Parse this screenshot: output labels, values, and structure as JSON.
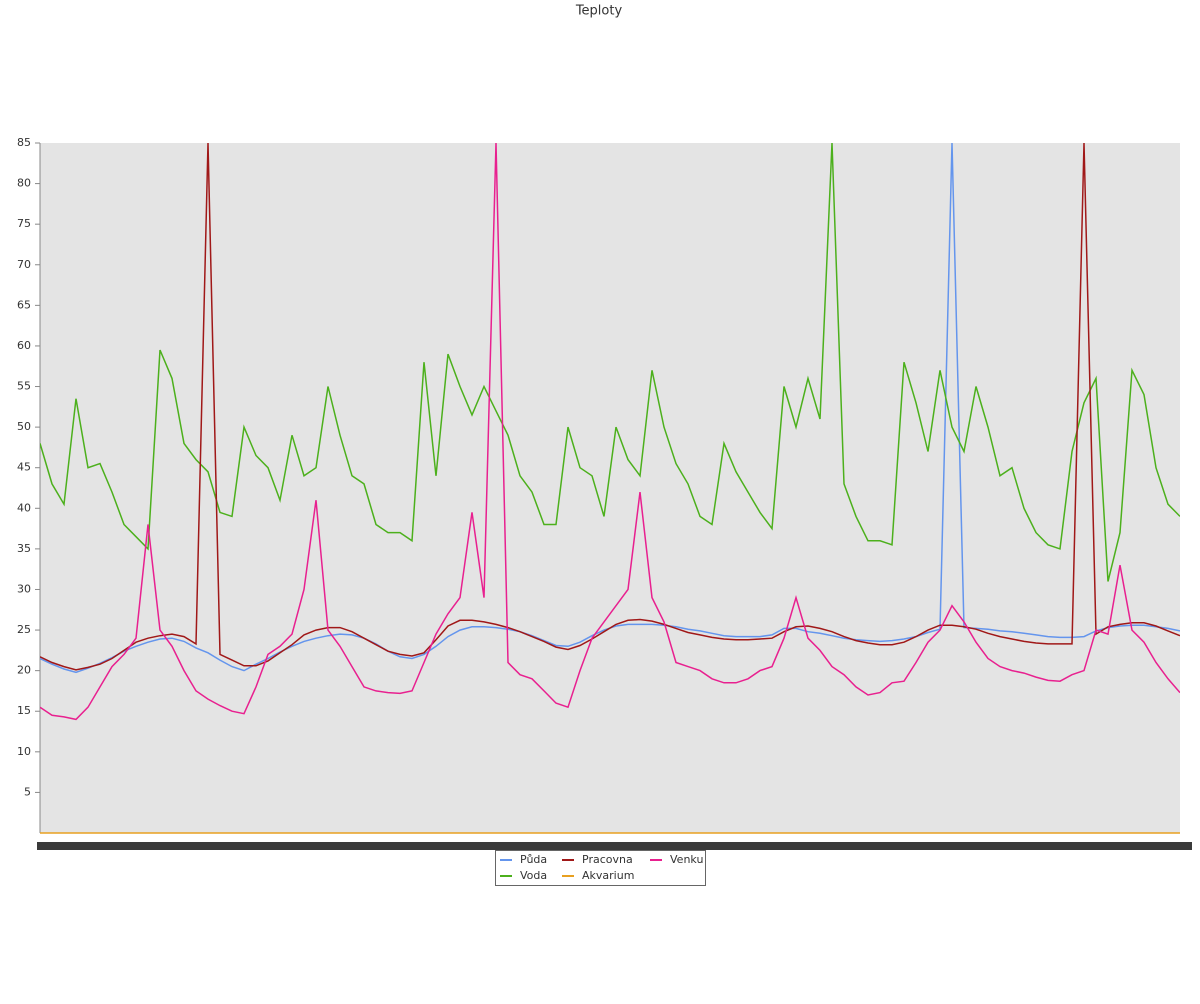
{
  "chart_data": {
    "type": "line",
    "title": "Teploty",
    "categories": [
      null,
      null,
      null,
      null,
      null,
      null,
      null,
      null,
      null,
      null,
      null,
      null,
      null,
      null,
      null,
      null,
      null,
      null,
      null,
      null,
      null,
      null,
      null,
      null,
      null,
      null,
      null,
      null,
      null,
      null,
      null,
      null,
      null,
      null,
      null,
      null,
      null,
      null,
      null,
      null,
      null,
      null,
      null,
      null,
      null,
      null,
      null,
      null,
      null,
      null,
      null,
      null,
      null,
      null,
      null,
      null,
      null,
      null,
      null,
      null,
      null,
      null,
      null,
      null,
      null,
      null,
      null,
      null,
      null,
      null,
      null,
      null,
      null,
      null,
      null,
      null,
      null,
      null,
      null,
      null,
      null,
      null,
      null,
      null,
      null,
      null,
      null,
      null,
      null,
      null,
      null,
      null,
      null,
      null,
      null,
      null
    ],
    "ylim": [
      0,
      85
    ],
    "yticks": [
      5,
      10,
      15,
      20,
      25,
      30,
      35,
      40,
      45,
      50,
      55,
      60,
      65,
      70,
      75,
      80,
      85
    ],
    "series": [
      {
        "name": "Půda",
        "color": "#6495ed",
        "values": [
          21.5,
          20.8,
          20.2,
          19.8,
          20.3,
          20.9,
          21.6,
          22.4,
          23,
          23.5,
          23.9,
          24,
          23.6,
          22.8,
          22.2,
          21.3,
          20.5,
          20,
          20.8,
          21.5,
          22.3,
          23,
          23.6,
          24,
          24.3,
          24.5,
          24.4,
          24,
          23.3,
          22.4,
          21.7,
          21.5,
          22,
          23,
          24.2,
          25,
          25.4,
          25.4,
          25.3,
          25.1,
          24.8,
          24.3,
          23.7,
          23.1,
          23,
          23.5,
          24.3,
          25,
          25.5,
          25.7,
          25.7,
          25.7,
          25.6,
          25.4,
          25.1,
          24.9,
          24.6,
          24.3,
          24.2,
          24.2,
          24.2,
          24.4,
          25.2,
          25.2,
          24.8,
          24.6,
          24.3,
          24,
          23.8,
          23.7,
          23.6,
          23.7,
          23.9,
          24.2,
          24.7,
          25.1,
          85,
          25.3,
          25.2,
          25.1,
          24.9,
          24.8,
          24.6,
          24.4,
          24.2,
          24.1,
          24.1,
          24.2,
          24.9,
          25.3,
          25.5,
          25.6,
          25.6,
          25.4,
          25.2,
          24.9
        ]
      },
      {
        "name": "Voda",
        "color": "#4cb01c",
        "values": [
          48,
          43,
          40.5,
          53.5,
          45,
          45.5,
          42,
          38,
          36.5,
          35,
          59.5,
          56,
          48,
          46,
          44.5,
          39.5,
          39,
          50,
          46.5,
          45,
          41,
          49,
          44,
          45,
          55,
          49,
          44,
          43,
          38,
          37,
          37,
          36,
          58,
          44,
          59,
          55,
          51.5,
          55,
          52,
          49,
          44,
          42,
          38,
          38,
          50,
          45,
          44,
          39,
          50,
          46,
          44,
          57,
          50,
          45.5,
          43,
          39,
          38,
          48,
          44.5,
          42,
          39.5,
          37.5,
          55,
          50,
          56,
          51,
          85,
          43,
          39,
          36,
          36,
          35.5,
          58,
          53,
          47,
          57,
          50,
          47,
          55,
          50,
          44,
          45,
          40,
          37,
          35.5,
          35,
          47,
          53,
          56,
          31,
          37,
          57,
          54,
          45,
          40.5,
          39
        ]
      },
      {
        "name": "Pracovna",
        "color": "#a01818",
        "values": [
          21.7,
          21,
          20.5,
          20.1,
          20.4,
          20.8,
          21.5,
          22.5,
          23.5,
          24,
          24.3,
          24.5,
          24.2,
          23.3,
          85,
          22,
          21.3,
          20.6,
          20.6,
          21.2,
          22.2,
          23.2,
          24.4,
          25,
          25.3,
          25.3,
          24.8,
          24,
          23.2,
          22.4,
          22,
          21.8,
          22.2,
          23.8,
          25.5,
          26.2,
          26.2,
          26,
          25.7,
          25.3,
          24.8,
          24.2,
          23.6,
          22.9,
          22.6,
          23.1,
          23.9,
          24.8,
          25.7,
          26.2,
          26.3,
          26.1,
          25.7,
          25.2,
          24.7,
          24.4,
          24.1,
          23.9,
          23.8,
          23.8,
          23.9,
          24,
          24.8,
          25.4,
          25.5,
          25.2,
          24.8,
          24.2,
          23.7,
          23.4,
          23.2,
          23.2,
          23.5,
          24.2,
          25,
          25.6,
          25.6,
          25.4,
          25.1,
          24.6,
          24.2,
          23.9,
          23.6,
          23.4,
          23.3,
          23.3,
          23.3,
          85,
          24.5,
          25.4,
          25.7,
          25.9,
          25.9,
          25.5,
          24.9,
          24.3
        ]
      },
      {
        "name": "Akvarium",
        "color": "#e8a020",
        "values": [
          0,
          0,
          0,
          0,
          0,
          0,
          0,
          0,
          0,
          0,
          0,
          0,
          0,
          0,
          0,
          0,
          0,
          0,
          0,
          0,
          0,
          0,
          0,
          0,
          0,
          0,
          0,
          0,
          0,
          0,
          0,
          0,
          0,
          0,
          0,
          0,
          0,
          0,
          0,
          0,
          0,
          0,
          0,
          0,
          0,
          0,
          0,
          0,
          0,
          0,
          0,
          0,
          0,
          0,
          0,
          0,
          0,
          0,
          0,
          0,
          0,
          0,
          0,
          0,
          0,
          0,
          0,
          0,
          0,
          0,
          0,
          0,
          0,
          0,
          0,
          0,
          0,
          0,
          0,
          0,
          0,
          0,
          0,
          0,
          0,
          0,
          0,
          0,
          0,
          0,
          0,
          0,
          0,
          0,
          0,
          0
        ]
      },
      {
        "name": "Venku",
        "color": "#e8208f",
        "values": [
          15.5,
          14.5,
          14.3,
          14,
          15.5,
          18,
          20.5,
          22,
          24,
          38,
          25,
          23,
          20,
          17.5,
          16.5,
          15.7,
          15,
          14.7,
          18,
          22,
          23,
          24.5,
          30,
          41,
          25,
          23,
          20.5,
          18,
          17.5,
          17.3,
          17.2,
          17.5,
          21,
          24.5,
          27,
          29,
          39.5,
          29,
          85,
          21,
          19.5,
          19,
          17.5,
          16,
          15.5,
          20,
          24,
          26,
          28,
          30,
          42,
          29,
          26,
          21,
          20.5,
          20,
          19,
          18.5,
          18.5,
          19,
          20,
          20.5,
          24,
          29,
          24,
          22.5,
          20.5,
          19.5,
          18,
          17,
          17.3,
          18.5,
          18.7,
          21,
          23.5,
          25,
          28,
          26,
          23.5,
          21.5,
          20.5,
          20,
          19.7,
          19.2,
          18.8,
          18.7,
          19.5,
          20,
          25,
          24.5,
          33,
          25,
          23.5,
          21,
          19,
          17.3
        ]
      }
    ]
  }
}
